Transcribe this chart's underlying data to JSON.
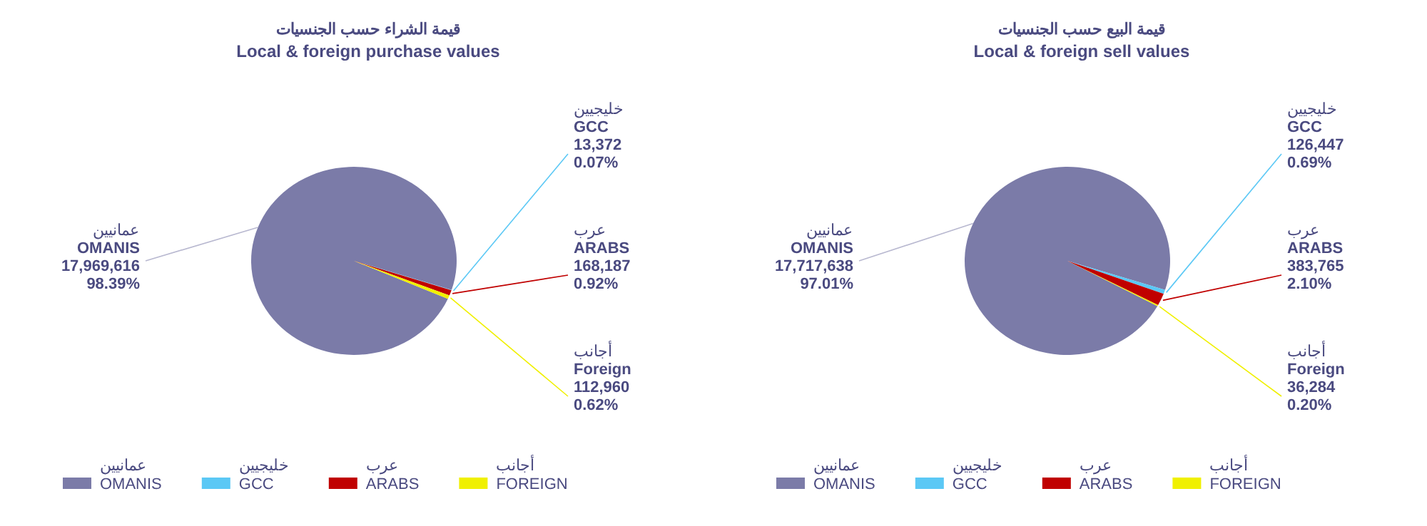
{
  "chart_data": [
    {
      "type": "pie",
      "title": "قيمة الشراء حسب الجنسيات",
      "subtitle": "Local & foreign purchase values",
      "categories": [
        "عمانيين\nOMANIS",
        "خليجيين\nGCC",
        "عرب\nARABS",
        "أجانب\nFOREIGN"
      ],
      "values": [
        17969616,
        13372,
        168187,
        112960
      ],
      "value_labels": [
        "عمانيين\nOMANIS\n17,969,616\n98.39%",
        "خليجيين\nGCC\n13,372\n0.07%",
        "عرب\nARABS\n168,187\n0.92%",
        "أجانب\nForeign\n112,960\n0.62%"
      ],
      "colors": [
        "#7b7ba8",
        "#5bc8f5",
        "#c00000",
        "#f0f000"
      ],
      "legend": "bottom"
    },
    {
      "type": "pie",
      "title": "قيمة البيع حسب الجنسيات",
      "subtitle": "Local & foreign sell values",
      "categories": [
        "عمانيين\nOMANIS",
        "خليجيين\nGCC",
        "عرب\nARABS",
        "أجانب\nFOREIGN"
      ],
      "values": [
        17717638,
        126447,
        383765,
        36284
      ],
      "value_labels": [
        "عمانيين\nOMANIS\n17,717,638\n97.01%",
        "خليجيين\nGCC\n126,447\n0.69%",
        "عرب\nARABS\n383,765\n2.10%",
        "أجانب\nForeign\n36,284\n0.20%"
      ],
      "colors": [
        "#7b7ba8",
        "#5bc8f5",
        "#c00000",
        "#f0f000"
      ],
      "legend": "bottom"
    }
  ]
}
